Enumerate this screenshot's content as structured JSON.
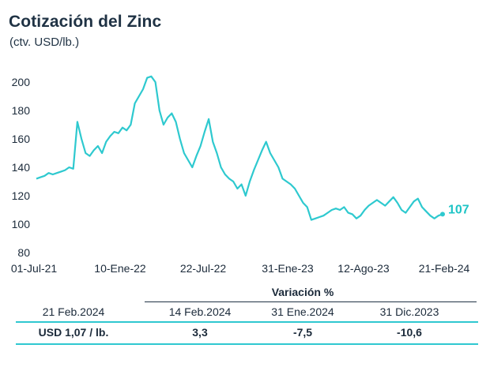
{
  "chart_data": {
    "type": "line",
    "title": "Cotización del Zinc",
    "subtitle": "(ctv. USD/lb.)",
    "ylim": [
      80,
      205
    ],
    "yticks": [
      80,
      100,
      120,
      140,
      160,
      180,
      200
    ],
    "xticks": [
      "01-Jul-21",
      "10-Ene-22",
      "22-Jul-22",
      "31-Ene-23",
      "12-Ago-23",
      "21-Feb-24"
    ],
    "grid": false,
    "line_color": "#2ec9cf",
    "end_label": "107",
    "series": [
      {
        "values": [
          132,
          133,
          134,
          136,
          135,
          136,
          137,
          138,
          140,
          139,
          172,
          160,
          150,
          148,
          152,
          155,
          150,
          158,
          162,
          165,
          164,
          168,
          166,
          170,
          185,
          190,
          195,
          203,
          204,
          200,
          180,
          170,
          175,
          178,
          172,
          160,
          150,
          145,
          140,
          148,
          155,
          165,
          174,
          158,
          150,
          140,
          135,
          132,
          130,
          125,
          128,
          120,
          130,
          138,
          145,
          152,
          158,
          150,
          145,
          140,
          132,
          130,
          128,
          125,
          120,
          115,
          112,
          103,
          104,
          105,
          106,
          108,
          110,
          111,
          110,
          112,
          108,
          107,
          104,
          106,
          110,
          113,
          115,
          117,
          115,
          113,
          116,
          119,
          115,
          110,
          108,
          112,
          116,
          118,
          112,
          109,
          106,
          104,
          106,
          107
        ]
      }
    ]
  },
  "table": {
    "header_variation": "Variación %",
    "col_date": "21 Feb.2024",
    "col_1": "14 Feb.2024",
    "col_2": "31 Ene.2024",
    "col_3": "31 Dic.2023",
    "row_label": "USD 1,07 / lb.",
    "row_v1": "3,3",
    "row_v2": "-7,5",
    "row_v3": "-10,6"
  }
}
